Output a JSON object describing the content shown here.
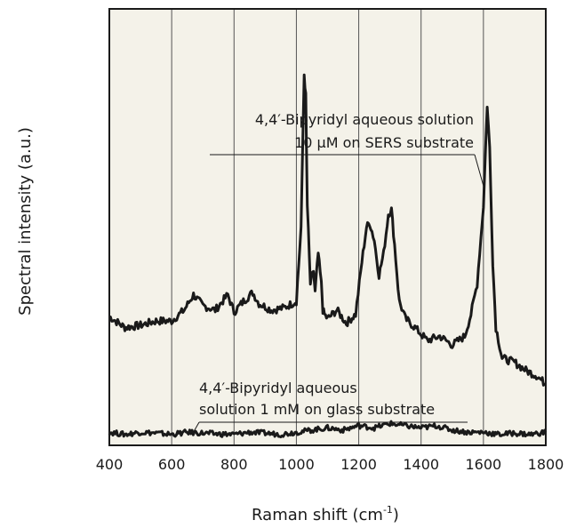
{
  "chart_data": {
    "type": "line",
    "xlabel": "Raman shift (cm",
    "xlabel_superscript": "-1",
    "xlabel_suffix": ")",
    "ylabel": "Spectral intensity (a.u.)",
    "xlim": [
      400,
      1800
    ],
    "ylim": [
      0,
      1
    ],
    "x_ticks": [
      400,
      600,
      800,
      1000,
      1200,
      1400,
      1600,
      1800
    ],
    "x_tick_labels": [
      "400",
      "600",
      "800",
      "1000",
      "1200",
      "1400",
      "1600",
      "1800"
    ],
    "y_ticks_shown": false,
    "grid": "vertical",
    "background": "#f4f2e9",
    "line_color": "#1a1a1a",
    "series": [
      {
        "x": [
          400,
          450,
          500,
          550,
          600,
          640,
          670,
          700,
          740,
          780,
          800,
          830,
          860,
          880,
          920,
          960,
          1000,
          1015,
          1025,
          1030,
          1035,
          1045,
          1055,
          1060,
          1070,
          1080,
          1085,
          1090,
          1100,
          1130,
          1160,
          1190,
          1210,
          1225,
          1235,
          1250,
          1265,
          1280,
          1295,
          1305,
          1315,
          1330,
          1350,
          1380,
          1420,
          1460,
          1500,
          1540,
          1560,
          1580,
          1600,
          1612,
          1620,
          1630,
          1640,
          1660,
          1700,
          1740,
          1770,
          1800
        ],
        "y": [
          0.295,
          0.27,
          0.275,
          0.285,
          0.285,
          0.31,
          0.345,
          0.32,
          0.31,
          0.345,
          0.305,
          0.33,
          0.35,
          0.325,
          0.31,
          0.315,
          0.33,
          0.5,
          0.85,
          0.8,
          0.55,
          0.37,
          0.4,
          0.35,
          0.44,
          0.37,
          0.31,
          0.3,
          0.29,
          0.31,
          0.28,
          0.3,
          0.42,
          0.5,
          0.51,
          0.47,
          0.39,
          0.44,
          0.53,
          0.54,
          0.46,
          0.33,
          0.29,
          0.27,
          0.24,
          0.25,
          0.23,
          0.25,
          0.3,
          0.37,
          0.55,
          0.78,
          0.68,
          0.42,
          0.27,
          0.2,
          0.19,
          0.17,
          0.16,
          0.14
        ]
      },
      {
        "x": [
          400,
          450,
          500,
          550,
          600,
          650,
          700,
          750,
          800,
          850,
          900,
          950,
          1000,
          1050,
          1100,
          1150,
          1200,
          1250,
          1300,
          1350,
          1400,
          1450,
          1500,
          1550,
          1600,
          1650,
          1700,
          1750,
          1800
        ],
        "y": [
          0.03,
          0.025,
          0.03,
          0.028,
          0.025,
          0.03,
          0.028,
          0.026,
          0.025,
          0.03,
          0.028,
          0.025,
          0.03,
          0.035,
          0.04,
          0.035,
          0.045,
          0.04,
          0.05,
          0.045,
          0.04,
          0.045,
          0.035,
          0.03,
          0.03,
          0.025,
          0.028,
          0.025,
          0.03
        ]
      }
    ],
    "annotations": [
      {
        "lines": [
          "4,4′-Bipyridyl aqueous solution",
          "10 μM on SERS substrate"
        ],
        "target": [
          1612,
          0.76
        ]
      },
      {
        "lines": [
          "4,4′-Bipyridyl aqueous",
          "solution 1 mM on glass substrate"
        ],
        "target": [
          640,
          0.04
        ]
      }
    ]
  }
}
